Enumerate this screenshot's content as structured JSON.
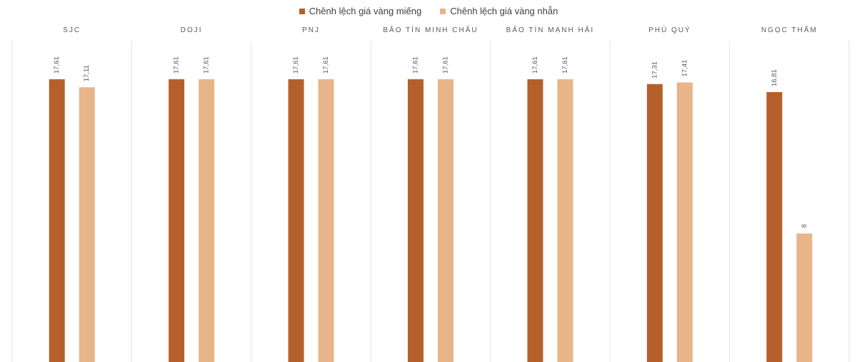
{
  "legend": [
    {
      "label": "Chênh lệch giá vàng miếng",
      "color": "#b5602a"
    },
    {
      "label": "Chênh lệch giá vàng nhẫn",
      "color": "#e8b48a"
    }
  ],
  "chart_data": {
    "type": "bar",
    "categories": [
      "SJC",
      "DOJI",
      "PNJ",
      "BẢO TÍN MINH CHÂU",
      "BẢO TÍN MẠNH HẢI",
      "PHÚ QUÝ",
      "NGỌC THẨM"
    ],
    "series": [
      {
        "name": "Chênh lệch giá vàng miếng",
        "values": [
          17.61,
          17.61,
          17.61,
          17.61,
          17.61,
          17.31,
          16.81
        ],
        "labels": [
          "17,61",
          "17,61",
          "17,61",
          "17,61",
          "17,61",
          "17,31",
          "16,81"
        ],
        "color": "#b5602a"
      },
      {
        "name": "Chênh lệch giá vàng nhẫn",
        "values": [
          17.11,
          17.61,
          17.61,
          17.61,
          17.61,
          17.41,
          8
        ],
        "labels": [
          "17,11",
          "17,61",
          "17,61",
          "17,61",
          "17,61",
          "17,41",
          "8"
        ],
        "color": "#e8b48a"
      }
    ],
    "ylim": [
      0,
      17.61
    ],
    "grid": false,
    "legend_position": "top-center",
    "title": "",
    "xlabel": "",
    "ylabel": ""
  }
}
